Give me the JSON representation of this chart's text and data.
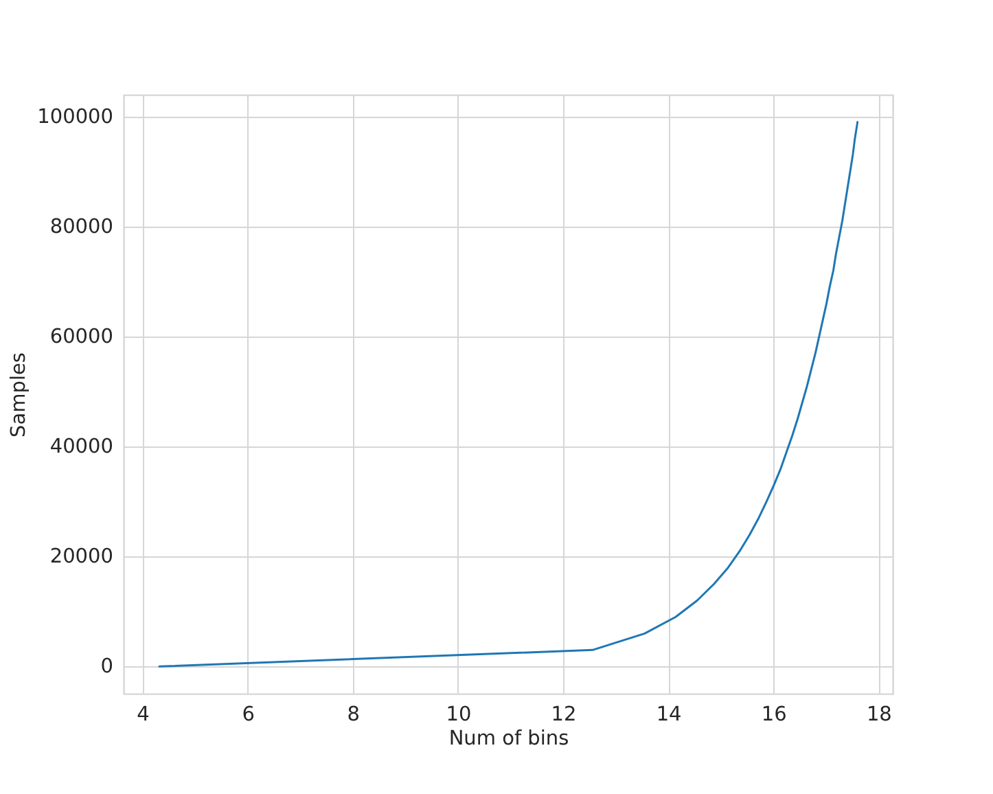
{
  "chart_data": {
    "type": "line",
    "xlabel": "Num of bins",
    "ylabel": "Samples",
    "x": [
      4.32,
      12.56,
      13.55,
      14.14,
      14.55,
      14.87,
      15.14,
      15.36,
      15.55,
      15.72,
      15.87,
      16.01,
      16.14,
      16.25,
      16.36,
      16.46,
      16.55,
      16.64,
      16.72,
      16.8,
      16.87,
      16.94,
      17.01,
      17.07,
      17.14,
      17.19,
      17.25,
      17.31,
      17.36,
      17.41,
      17.46,
      17.51,
      17.55,
      17.6
    ],
    "series": [
      {
        "color": "#1f77b4",
        "values": [
          0,
          3000,
          6000,
          9000,
          12000,
          15000,
          18000,
          21000,
          24000,
          27000,
          30000,
          33000,
          36000,
          39000,
          42000,
          45000,
          48000,
          51000,
          54000,
          57000,
          60000,
          63000,
          66000,
          69000,
          72000,
          75000,
          78000,
          81000,
          84000,
          87000,
          90000,
          93000,
          96000,
          99000
        ]
      }
    ],
    "xlim": [
      3.64,
      18.27
    ],
    "ylim": [
      -4950,
      103950
    ],
    "xticks": [
      4,
      6,
      8,
      10,
      12,
      14,
      16,
      18
    ],
    "yticks": [
      0,
      20000,
      40000,
      60000,
      80000,
      100000
    ],
    "grid": true,
    "line_style": "solid"
  }
}
